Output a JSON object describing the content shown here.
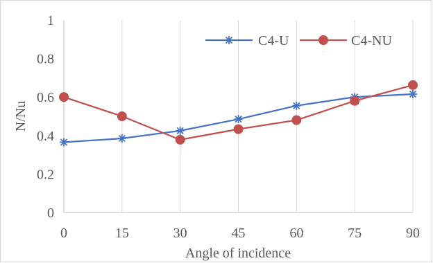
{
  "chart_data": {
    "type": "line",
    "title": "",
    "xlabel": "Angle of incidence",
    "ylabel": "N/Nu",
    "x": [
      0,
      15,
      30,
      45,
      60,
      75,
      90
    ],
    "x_tick_labels": [
      "0",
      "15",
      "30",
      "45",
      "60",
      "75",
      "90"
    ],
    "ylim": [
      0,
      1
    ],
    "y_ticks": [
      0,
      0.2,
      0.4,
      0.6,
      0.8,
      1
    ],
    "y_tick_labels": [
      "0",
      "0.2",
      "0.4",
      "0.6",
      "0.8",
      "1"
    ],
    "grid": "vertical",
    "legend_position": "top-right",
    "series": [
      {
        "name": "C4-U",
        "marker": "star",
        "color": "#4472c4",
        "values": [
          0.365,
          0.385,
          0.425,
          0.485,
          0.555,
          0.6,
          0.615
        ]
      },
      {
        "name": "C4-NU",
        "marker": "circle",
        "color": "#c0504d",
        "values": [
          0.6,
          0.5,
          0.378,
          0.433,
          0.48,
          0.58,
          0.662
        ]
      }
    ]
  }
}
